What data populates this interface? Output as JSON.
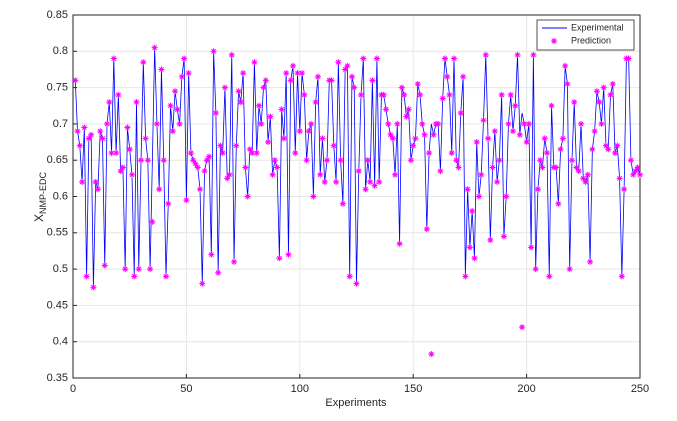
{
  "chart_data": {
    "type": "line",
    "xlabel": "Experiments",
    "ylabel": "X",
    "ylabel_subscript": "NMP-EDC",
    "xlim": [
      0,
      250
    ],
    "xticks": [
      0,
      50,
      100,
      150,
      200,
      250
    ],
    "ylim": [
      0.35,
      0.85
    ],
    "yticks": [
      0.35,
      0.4,
      0.45,
      0.5,
      0.55,
      0.6,
      0.65,
      0.7,
      0.75,
      0.8,
      0.85
    ],
    "grid": true,
    "legend": "northeast",
    "x": [
      1,
      2,
      3,
      4,
      5,
      6,
      7,
      8,
      9,
      10,
      11,
      12,
      13,
      14,
      15,
      16,
      17,
      18,
      19,
      20,
      21,
      22,
      23,
      24,
      25,
      26,
      27,
      28,
      29,
      30,
      31,
      32,
      33,
      34,
      35,
      36,
      37,
      38,
      39,
      40,
      41,
      42,
      43,
      44,
      45,
      46,
      47,
      48,
      49,
      50,
      51,
      52,
      53,
      54,
      55,
      56,
      57,
      58,
      59,
      60,
      61,
      62,
      63,
      64,
      65,
      66,
      67,
      68,
      69,
      70,
      71,
      72,
      73,
      74,
      75,
      76,
      77,
      78,
      79,
      80,
      81,
      82,
      83,
      84,
      85,
      86,
      87,
      88,
      89,
      90,
      91,
      92,
      93,
      94,
      95,
      96,
      97,
      98,
      99,
      100,
      101,
      102,
      103,
      104,
      105,
      106,
      107,
      108,
      109,
      110,
      111,
      112,
      113,
      114,
      115,
      116,
      117,
      118,
      119,
      120,
      121,
      122,
      123,
      124,
      125,
      126,
      127,
      128,
      129,
      130,
      131,
      132,
      133,
      134,
      135,
      136,
      137,
      138,
      139,
      140,
      141,
      142,
      143,
      144,
      145,
      146,
      147,
      148,
      149,
      150,
      151,
      152,
      153,
      154,
      155,
      156,
      157,
      158,
      159,
      160,
      161,
      162,
      163,
      164,
      165,
      166,
      167,
      168,
      169,
      170,
      171,
      172,
      173,
      174,
      175,
      176,
      177,
      178,
      179,
      180,
      181,
      182,
      183,
      184,
      185,
      186,
      187,
      188,
      189,
      190,
      191,
      192,
      193,
      194,
      195,
      196,
      197,
      198,
      199,
      200,
      201,
      202,
      203,
      204,
      205,
      206,
      207,
      208,
      209,
      210,
      211,
      212,
      213,
      214,
      215,
      216,
      217,
      218,
      219,
      220,
      221,
      222,
      223,
      224,
      225,
      226,
      227,
      228,
      229,
      230,
      231,
      232,
      233,
      234,
      235,
      236,
      237,
      238,
      239,
      240,
      241,
      242,
      243,
      244,
      245,
      246,
      247,
      248,
      249,
      250
    ],
    "series": [
      {
        "name": "Experimental",
        "color": "#0000ff",
        "style": "line",
        "values": [
          0.76,
          0.69,
          0.67,
          0.62,
          0.695,
          0.49,
          0.68,
          0.685,
          0.475,
          0.62,
          0.61,
          0.69,
          0.68,
          0.505,
          0.7,
          0.73,
          0.66,
          0.79,
          0.66,
          0.74,
          0.635,
          0.64,
          0.5,
          0.695,
          0.665,
          0.63,
          0.49,
          0.73,
          0.5,
          0.65,
          0.785,
          0.68,
          0.65,
          0.5,
          0.65,
          0.805,
          0.7,
          0.61,
          0.775,
          0.65,
          0.49,
          0.59,
          0.725,
          0.69,
          0.745,
          0.72,
          0.7,
          0.765,
          0.79,
          0.595,
          0.77,
          0.66,
          0.65,
          0.645,
          0.64,
          0.61,
          0.48,
          0.635,
          0.65,
          0.655,
          0.52,
          0.8,
          0.715,
          0.495,
          0.67,
          0.66,
          0.75,
          0.625,
          0.63,
          0.795,
          0.51,
          0.67,
          0.745,
          0.73,
          0.77,
          0.64,
          0.6,
          0.665,
          0.66,
          0.785,
          0.66,
          0.725,
          0.7,
          0.75,
          0.76,
          0.675,
          0.71,
          0.63,
          0.65,
          0.64,
          0.515,
          0.72,
          0.68,
          0.77,
          0.52,
          0.76,
          0.78,
          0.66,
          0.77,
          0.69,
          0.77,
          0.74,
          0.65,
          0.69,
          0.7,
          0.6,
          0.73,
          0.765,
          0.63,
          0.68,
          0.62,
          0.65,
          0.76,
          0.76,
          0.67,
          0.62,
          0.785,
          0.65,
          0.59,
          0.775,
          0.78,
          0.49,
          0.765,
          0.75,
          0.48,
          0.635,
          0.74,
          0.79,
          0.61,
          0.65,
          0.62,
          0.76,
          0.615,
          0.79,
          0.62,
          0.74,
          0.74,
          0.72,
          0.7,
          0.685,
          0.68,
          0.63,
          0.7,
          0.535,
          0.75,
          0.74,
          0.71,
          0.72,
          0.65,
          0.67,
          0.68,
          0.755,
          0.74,
          0.7,
          0.685,
          0.555,
          0.66,
          0.7,
          0.685,
          0.7,
          0.7,
          0.635,
          0.735,
          0.79,
          0.765,
          0.74,
          0.66,
          0.79,
          0.65,
          0.64,
          0.715,
          0.765,
          0.49,
          0.61,
          0.53,
          0.58,
          0.515,
          0.675,
          0.6,
          0.63,
          0.705,
          0.795,
          0.68,
          0.54,
          0.64,
          0.69,
          0.62,
          0.65,
          0.74,
          0.545,
          0.6,
          0.7,
          0.74,
          0.69,
          0.725,
          0.795,
          0.685,
          0.715,
          0.7,
          0.675,
          0.7,
          0.53,
          0.795,
          0.5,
          0.61,
          0.65,
          0.64,
          0.68,
          0.66,
          0.49,
          0.725,
          0.64,
          0.64,
          0.59,
          0.665,
          0.68,
          0.78,
          0.755,
          0.5,
          0.65,
          0.73,
          0.64,
          0.635,
          0.7,
          0.625,
          0.62,
          0.63,
          0.51,
          0.665,
          0.69,
          0.745,
          0.73,
          0.7,
          0.75,
          0.67,
          0.665,
          0.74,
          0.755,
          0.66,
          0.67,
          0.625,
          0.49,
          0.61,
          0.79,
          0.79,
          0.65,
          0.63,
          0.635,
          0.64,
          0.63
        ]
      },
      {
        "name": "Prediction",
        "color": "#ff00ff",
        "style": "marker",
        "values": [
          0.76,
          0.69,
          0.67,
          0.62,
          0.695,
          0.49,
          0.68,
          0.685,
          0.475,
          0.62,
          0.61,
          0.69,
          0.68,
          0.505,
          0.7,
          0.73,
          0.66,
          0.79,
          0.66,
          0.74,
          0.635,
          0.64,
          0.5,
          0.695,
          0.665,
          0.63,
          0.49,
          0.73,
          0.5,
          0.65,
          0.785,
          0.68,
          0.65,
          0.5,
          0.565,
          0.805,
          0.7,
          0.61,
          0.775,
          0.65,
          0.49,
          0.59,
          0.725,
          0.69,
          0.745,
          0.72,
          0.7,
          0.765,
          0.79,
          0.595,
          0.77,
          0.66,
          0.65,
          0.645,
          0.64,
          0.61,
          0.48,
          0.635,
          0.65,
          0.655,
          0.52,
          0.8,
          0.715,
          0.495,
          0.67,
          0.66,
          0.75,
          0.625,
          0.63,
          0.795,
          0.51,
          0.67,
          0.745,
          0.73,
          0.77,
          0.64,
          0.6,
          0.665,
          0.66,
          0.785,
          0.66,
          0.725,
          0.7,
          0.75,
          0.76,
          0.675,
          0.71,
          0.63,
          0.65,
          0.64,
          0.515,
          0.72,
          0.68,
          0.77,
          0.52,
          0.76,
          0.78,
          0.66,
          0.77,
          0.69,
          0.77,
          0.74,
          0.65,
          0.69,
          0.7,
          0.6,
          0.73,
          0.765,
          0.63,
          0.68,
          0.62,
          0.65,
          0.76,
          0.76,
          0.67,
          0.62,
          0.785,
          0.65,
          0.59,
          0.775,
          0.78,
          0.49,
          0.765,
          0.75,
          0.48,
          0.635,
          0.74,
          0.79,
          0.61,
          0.65,
          0.62,
          0.76,
          0.615,
          0.79,
          0.62,
          0.74,
          0.74,
          0.72,
          0.7,
          0.685,
          0.68,
          0.63,
          0.7,
          0.535,
          0.75,
          0.74,
          0.71,
          0.72,
          0.65,
          0.67,
          0.68,
          0.755,
          0.74,
          0.7,
          0.685,
          0.555,
          0.66,
          0.383,
          0.685,
          0.7,
          0.7,
          0.635,
          0.735,
          0.79,
          0.765,
          0.74,
          0.66,
          0.79,
          0.65,
          0.64,
          0.715,
          0.765,
          0.49,
          0.61,
          0.53,
          0.58,
          0.515,
          0.675,
          0.6,
          0.63,
          0.705,
          0.795,
          0.68,
          0.54,
          0.64,
          0.69,
          0.62,
          0.65,
          0.74,
          0.545,
          0.6,
          0.7,
          0.74,
          0.69,
          0.725,
          0.795,
          0.685,
          0.42,
          0.7,
          0.675,
          0.7,
          0.53,
          0.795,
          0.5,
          0.61,
          0.65,
          0.64,
          0.68,
          0.66,
          0.49,
          0.725,
          0.64,
          0.64,
          0.59,
          0.665,
          0.68,
          0.78,
          0.755,
          0.5,
          0.65,
          0.73,
          0.64,
          0.635,
          0.7,
          0.625,
          0.62,
          0.63,
          0.51,
          0.665,
          0.69,
          0.745,
          0.73,
          0.7,
          0.75,
          0.67,
          0.665,
          0.74,
          0.755,
          0.66,
          0.67,
          0.625,
          0.49,
          0.61,
          0.79,
          0.79,
          0.65,
          0.63,
          0.635,
          0.64,
          0.63
        ]
      }
    ]
  }
}
